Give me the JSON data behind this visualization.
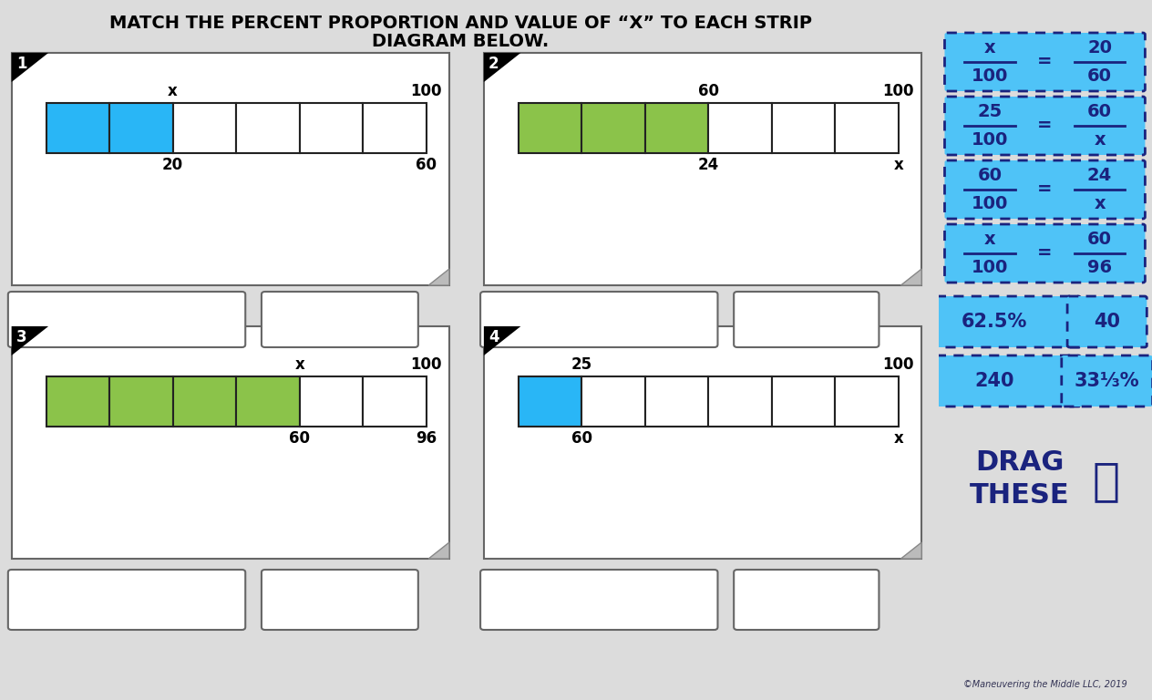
{
  "title_line1": "MATCH THE PERCENT PROPORTION AND VALUE OF “X” TO EACH STRIP",
  "title_line2": "DIAGRAM BELOW.",
  "bg_color": "#dcdcdc",
  "sidebar_color": "#4fc3f7",
  "blue_fill": "#29b6f6",
  "green_fill": "#8bc34a",
  "white": "#ffffff",
  "dark_navy": "#1a237e",
  "diagram1": {
    "num": "1",
    "total_cells": 6,
    "filled_cells": 2,
    "fill_color": "#29b6f6",
    "label_above_end_fill": "x",
    "label_above_right": "100",
    "label_below_end_fill": "20",
    "label_below_right": "60"
  },
  "diagram2": {
    "num": "2",
    "total_cells": 6,
    "filled_cells": 3,
    "fill_color": "#8bc34a",
    "label_above_end_fill": "60",
    "label_above_right": "100",
    "label_below_end_fill": "24",
    "label_below_right": "x"
  },
  "diagram3": {
    "num": "3",
    "total_cells": 6,
    "filled_cells": 4,
    "fill_color": "#8bc34a",
    "label_above_end_fill": "x",
    "label_above_right": "100",
    "label_below_end_fill": "60",
    "label_below_right": "96"
  },
  "diagram4": {
    "num": "4",
    "total_cells": 6,
    "filled_cells": 1,
    "fill_color": "#29b6f6",
    "label_above_end_fill": "25",
    "label_above_right": "100",
    "label_below_end_fill": "60",
    "label_below_right": "x"
  },
  "cards_fraction": [
    {
      "num1": "x",
      "den1": "100",
      "num2": "20",
      "den2": "60"
    },
    {
      "num1": "25",
      "den1": "100",
      "num2": "60",
      "den2": "x"
    },
    {
      "num1": "60",
      "den1": "100",
      "num2": "24",
      "den2": "x"
    },
    {
      "num1": "x",
      "den1": "100",
      "num2": "60",
      "den2": "96"
    }
  ],
  "cards_single_row1": [
    "62.5%",
    "40"
  ],
  "cards_single_row2": [
    "240",
    "33⅓%"
  ],
  "copyright": "©Maneuvering the Middle LLC, 2019"
}
